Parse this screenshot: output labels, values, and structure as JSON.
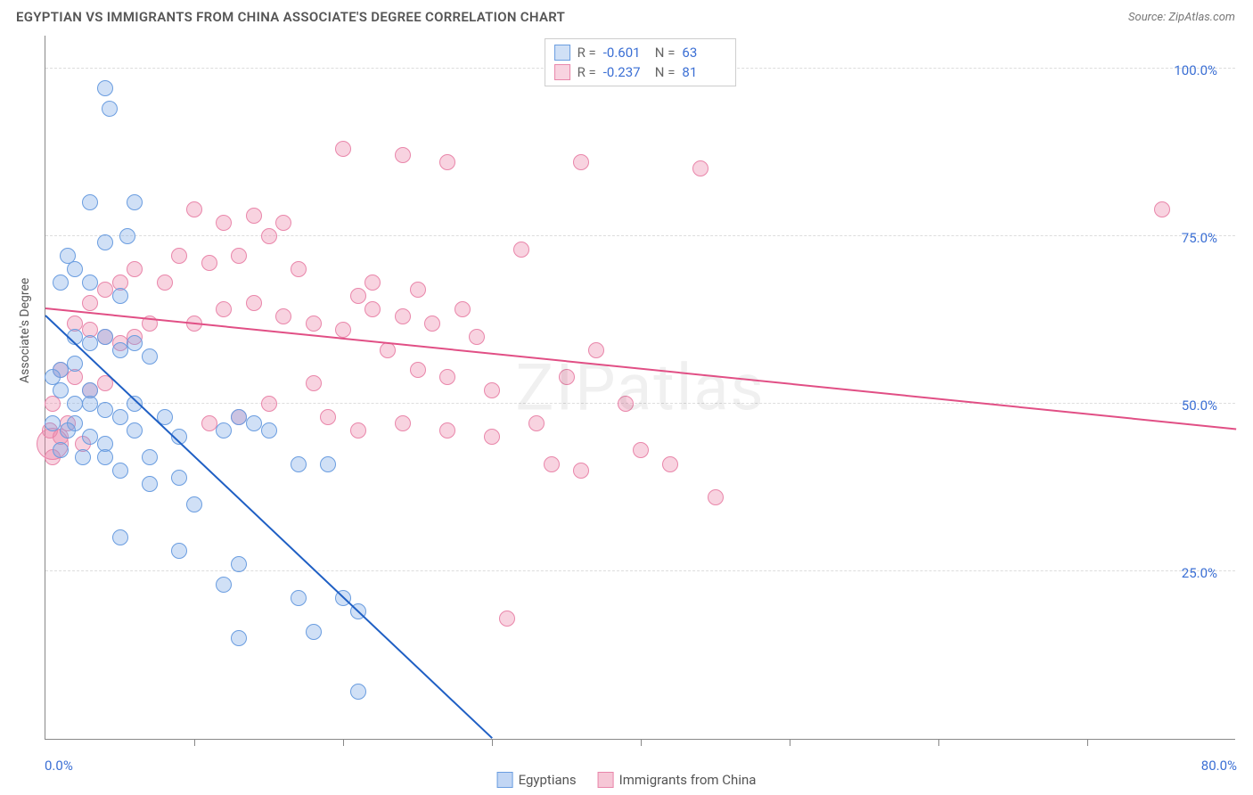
{
  "title": "EGYPTIAN VS IMMIGRANTS FROM CHINA ASSOCIATE'S DEGREE CORRELATION CHART",
  "source": "Source: ZipAtlas.com",
  "ylabel": "Associate's Degree",
  "watermark": "ZIPatlas",
  "xlim": [
    0,
    80
  ],
  "ylim": [
    0,
    105
  ],
  "xtick_start_label": "0.0%",
  "xtick_end_label": "80.0%",
  "xtick_positions": [
    10,
    20,
    30,
    40,
    50,
    60,
    70
  ],
  "yticks": [
    {
      "v": 25,
      "label": "25.0%"
    },
    {
      "v": 50,
      "label": "50.0%"
    },
    {
      "v": 75,
      "label": "75.0%"
    },
    {
      "v": 100,
      "label": "100.0%"
    }
  ],
  "series": [
    {
      "name": "Egyptians",
      "fill": "rgba(120,165,230,0.35)",
      "stroke": "#6a9de0",
      "trend_color": "#1f5fc4",
      "R": "-0.601",
      "N": "63",
      "marker_r": 9,
      "trend": {
        "x1": 0,
        "y1": 63,
        "x2": 30,
        "y2": 0
      },
      "points": [
        [
          4,
          97
        ],
        [
          4.3,
          94
        ],
        [
          3,
          80
        ],
        [
          6,
          80
        ],
        [
          5.5,
          75
        ],
        [
          4,
          74
        ],
        [
          1.5,
          72
        ],
        [
          1,
          68
        ],
        [
          2,
          70
        ],
        [
          3,
          68
        ],
        [
          5,
          66
        ],
        [
          2,
          60
        ],
        [
          3,
          59
        ],
        [
          4,
          60
        ],
        [
          5,
          58
        ],
        [
          6,
          59
        ],
        [
          7,
          57
        ],
        [
          1,
          55
        ],
        [
          2,
          56
        ],
        [
          3,
          52
        ],
        [
          0.5,
          54
        ],
        [
          1,
          52
        ],
        [
          2,
          50
        ],
        [
          3,
          50
        ],
        [
          4,
          49
        ],
        [
          5,
          48
        ],
        [
          6,
          50
        ],
        [
          2,
          47
        ],
        [
          3,
          45
        ],
        [
          4,
          44
        ],
        [
          1,
          43
        ],
        [
          2.5,
          42
        ],
        [
          4,
          42
        ],
        [
          0.5,
          47
        ],
        [
          1.5,
          46
        ],
        [
          6,
          46
        ],
        [
          8,
          48
        ],
        [
          7,
          42
        ],
        [
          9,
          45
        ],
        [
          5,
          40
        ],
        [
          7,
          38
        ],
        [
          9,
          39
        ],
        [
          12,
          46
        ],
        [
          13,
          48
        ],
        [
          14,
          47
        ],
        [
          15,
          46
        ],
        [
          17,
          41
        ],
        [
          19,
          41
        ],
        [
          10,
          35
        ],
        [
          9,
          28
        ],
        [
          5,
          30
        ],
        [
          12,
          23
        ],
        [
          13,
          26
        ],
        [
          17,
          21
        ],
        [
          20,
          21
        ],
        [
          13,
          15
        ],
        [
          18,
          16
        ],
        [
          21,
          19
        ],
        [
          21,
          7
        ]
      ]
    },
    {
      "name": "Immigrants from China",
      "fill": "rgba(235,130,165,0.35)",
      "stroke": "#e986aa",
      "trend_color": "#e14f85",
      "R": "-0.237",
      "N": "81",
      "marker_r": 9,
      "trend": {
        "x1": 0,
        "y1": 64,
        "x2": 80,
        "y2": 46
      },
      "points": [
        [
          20,
          88
        ],
        [
          24,
          87
        ],
        [
          27,
          86
        ],
        [
          36,
          86
        ],
        [
          44,
          85
        ],
        [
          75,
          79
        ],
        [
          10,
          79
        ],
        [
          12,
          77
        ],
        [
          14,
          78
        ],
        [
          16,
          77
        ],
        [
          15,
          75
        ],
        [
          9,
          72
        ],
        [
          8,
          68
        ],
        [
          6,
          70
        ],
        [
          5,
          68
        ],
        [
          4,
          67
        ],
        [
          3,
          65
        ],
        [
          11,
          71
        ],
        [
          13,
          72
        ],
        [
          17,
          70
        ],
        [
          22,
          68
        ],
        [
          25,
          67
        ],
        [
          32,
          73
        ],
        [
          2,
          62
        ],
        [
          3,
          61
        ],
        [
          4,
          60
        ],
        [
          5,
          59
        ],
        [
          6,
          60
        ],
        [
          7,
          62
        ],
        [
          1,
          55
        ],
        [
          2,
          54
        ],
        [
          3,
          52
        ],
        [
          4,
          53
        ],
        [
          0.5,
          50
        ],
        [
          10,
          62
        ],
        [
          12,
          64
        ],
        [
          14,
          65
        ],
        [
          16,
          63
        ],
        [
          18,
          62
        ],
        [
          20,
          61
        ],
        [
          21,
          66
        ],
        [
          22,
          64
        ],
        [
          24,
          63
        ],
        [
          26,
          62
        ],
        [
          28,
          64
        ],
        [
          29,
          60
        ],
        [
          23,
          58
        ],
        [
          25,
          55
        ],
        [
          27,
          54
        ],
        [
          30,
          52
        ],
        [
          18,
          53
        ],
        [
          15,
          50
        ],
        [
          13,
          48
        ],
        [
          11,
          47
        ],
        [
          19,
          48
        ],
        [
          21,
          46
        ],
        [
          24,
          47
        ],
        [
          27,
          46
        ],
        [
          30,
          45
        ],
        [
          33,
          47
        ],
        [
          35,
          54
        ],
        [
          37,
          58
        ],
        [
          39,
          50
        ],
        [
          40,
          43
        ],
        [
          34,
          41
        ],
        [
          36,
          40
        ],
        [
          42,
          41
        ],
        [
          1,
          45
        ],
        [
          1.5,
          47
        ],
        [
          2.5,
          44
        ],
        [
          45,
          36
        ],
        [
          31,
          18
        ],
        [
          0.5,
          42
        ],
        [
          0.3,
          46
        ]
      ]
    }
  ],
  "legend_bottom": [
    {
      "label": "Egyptians",
      "fill": "rgba(120,165,230,0.45)",
      "stroke": "#6a9de0"
    },
    {
      "label": "Immigrants from China",
      "fill": "rgba(235,130,165,0.45)",
      "stroke": "#e986aa"
    }
  ],
  "big_points": [
    {
      "series": 1,
      "x": 0.5,
      "y": 44,
      "r": 18
    }
  ]
}
